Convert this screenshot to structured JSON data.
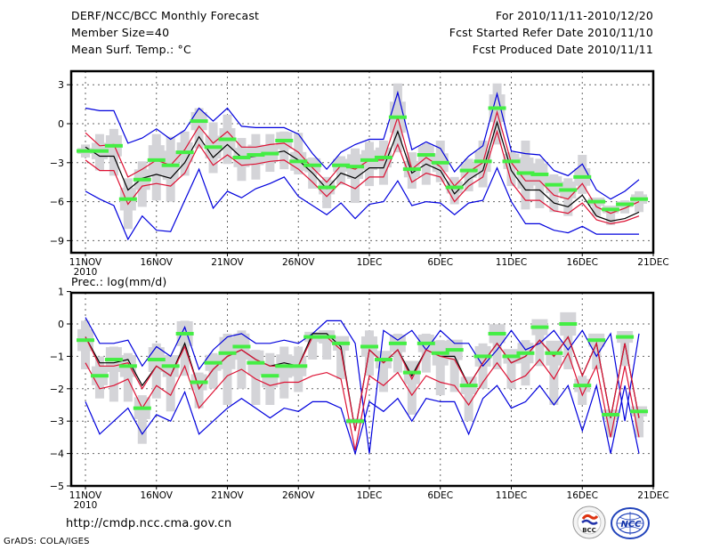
{
  "header": {
    "title": "DERF/NCC/BCC Monthly Forecast",
    "member_size": "Member Size=40",
    "variable1": "Mean Surf. Temp.: °C",
    "period": "For 2010/11/11-2010/12/20",
    "start_date": "Fcst Started Refer Date 2010/11/10",
    "produced_date": "Fcst Produced Date 2010/11/11"
  },
  "footer": {
    "url": "http://cmdp.ncc.cma.gov.cn",
    "credit": "GrADS: COLA/IGES",
    "logo_bcc": "BCC",
    "logo_ncc": "NCC"
  },
  "colors": {
    "envelope": "#0000dd",
    "spread": "#dd1133",
    "mean": "#000000",
    "members_box": "#d4d4d8",
    "median_bar": "#44ee44",
    "grid": "#666666"
  },
  "chart_data": [
    {
      "type": "line",
      "title": "Mean Surf. Temp.: °C",
      "xlabel": "",
      "ylabel": "",
      "ylim": [
        -10,
        4
      ],
      "yticks": [
        3,
        0,
        -3,
        -6,
        -9
      ],
      "xticks": [
        "11NOV",
        "16NOV",
        "21NOV",
        "26NOV",
        "1DEC",
        "6DEC",
        "11DEC",
        "16DEC",
        "21DEC"
      ],
      "xtick_year": "2010",
      "grid": true,
      "x_days": 40,
      "series": [
        {
          "name": "max",
          "color": "blue",
          "values": [
            1.2,
            1.0,
            1.0,
            -1.5,
            -1.1,
            -0.4,
            -1.2,
            -0.5,
            1.2,
            0.2,
            1.2,
            -0.2,
            -0.3,
            -0.3,
            -0.3,
            -0.8,
            -2.3,
            -3.5,
            -2.2,
            -1.6,
            -1.2,
            -1.2,
            2.4,
            -2.0,
            -1.4,
            -1.9,
            -3.7,
            -2.5,
            -1.7,
            2.3,
            -2.1,
            -2.3,
            -2.4,
            -3.6,
            -4.0,
            -3.1,
            -5.1,
            -5.8,
            -5.2,
            -4.3
          ]
        },
        {
          "name": "upper",
          "color": "red",
          "values": [
            -0.7,
            -1.7,
            -1.6,
            -4.1,
            -3.5,
            -2.8,
            -3.2,
            -2.0,
            -0.2,
            -1.5,
            -0.6,
            -1.8,
            -1.8,
            -1.6,
            -1.5,
            -2.2,
            -3.4,
            -4.5,
            -3.2,
            -3.5,
            -2.8,
            -2.8,
            0.5,
            -3.5,
            -2.6,
            -3.3,
            -4.8,
            -3.7,
            -3.0,
            0.9,
            -3.0,
            -4.4,
            -4.4,
            -5.5,
            -5.8,
            -4.6,
            -6.4,
            -6.9,
            -6.5,
            -6.0
          ]
        },
        {
          "name": "mean",
          "color": "black",
          "values": [
            -1.8,
            -2.5,
            -2.5,
            -5.1,
            -4.2,
            -3.9,
            -4.2,
            -3.0,
            -1.0,
            -2.6,
            -1.6,
            -2.6,
            -2.5,
            -2.3,
            -2.1,
            -2.8,
            -3.8,
            -5.0,
            -3.8,
            -4.2,
            -3.4,
            -3.4,
            -0.6,
            -3.8,
            -3.1,
            -3.6,
            -5.4,
            -4.3,
            -3.6,
            0.1,
            -3.6,
            -5.1,
            -5.1,
            -6.1,
            -6.4,
            -5.5,
            -7.1,
            -7.5,
            -7.3,
            -6.8
          ]
        },
        {
          "name": "lower",
          "color": "red",
          "values": [
            -2.8,
            -3.6,
            -3.6,
            -6.2,
            -4.8,
            -4.6,
            -4.8,
            -3.8,
            -1.6,
            -3.2,
            -2.4,
            -3.2,
            -3.1,
            -2.9,
            -2.8,
            -3.5,
            -4.5,
            -5.6,
            -4.5,
            -5.0,
            -4.1,
            -4.1,
            -1.6,
            -4.5,
            -3.8,
            -4.1,
            -6.0,
            -4.8,
            -4.1,
            -0.6,
            -4.5,
            -5.9,
            -5.9,
            -6.7,
            -6.9,
            -6.1,
            -7.4,
            -7.7,
            -7.5,
            -7.1
          ]
        },
        {
          "name": "min",
          "color": "blue",
          "values": [
            -5.2,
            -5.8,
            -6.3,
            -8.9,
            -7.1,
            -8.2,
            -8.3,
            -5.9,
            -3.5,
            -6.5,
            -5.2,
            -5.7,
            -5.0,
            -4.6,
            -4.1,
            -5.6,
            -6.3,
            -7.0,
            -6.1,
            -7.3,
            -6.2,
            -6.0,
            -4.4,
            -6.3,
            -6.0,
            -6.1,
            -7.0,
            -6.1,
            -5.9,
            -3.4,
            -6.0,
            -7.7,
            -7.7,
            -8.2,
            -8.4,
            -7.9,
            -8.5,
            -8.5,
            -8.5,
            -8.5
          ]
        }
      ],
      "boxes": {
        "name": "member distribution",
        "range_low": [
          -2.6,
          -3.6,
          -4.0,
          -8.1,
          -6.4,
          -5.9,
          -6.0,
          -4.0,
          -1.9,
          -3.8,
          -3.1,
          -4.4,
          -4.3,
          -3.7,
          -3.5,
          -3.9,
          -5.0,
          -6.5,
          -4.7,
          -6.1,
          -4.8,
          -4.7,
          -2.2,
          -5.0,
          -4.7,
          -4.5,
          -6.2,
          -5.2,
          -4.9,
          -1.6,
          -4.8,
          -6.6,
          -6.5,
          -6.8,
          -7.1,
          -5.4,
          -7.1,
          -7.8,
          -6.9,
          -6.8
        ],
        "range_high": [
          -1.6,
          -0.8,
          -0.4,
          -4.2,
          -2.9,
          -0.8,
          -1.0,
          -0.6,
          1.2,
          0.1,
          0.7,
          -1.1,
          -0.8,
          -0.8,
          -0.6,
          -0.7,
          -2.6,
          -4.1,
          -2.5,
          -1.9,
          -1.4,
          -1.3,
          3.1,
          -2.2,
          -1.5,
          -1.3,
          -4.1,
          -2.7,
          -1.3,
          3.1,
          -2.2,
          -1.3,
          -2.7,
          -3.9,
          -4.2,
          -2.4,
          -5.7,
          -6.5,
          -5.9,
          -5.2
        ],
        "median": [
          -2.1,
          -2.1,
          -1.7,
          -5.8,
          -4.3,
          -2.8,
          -3.2,
          -2.2,
          0.2,
          -1.8,
          -1.2,
          -2.6,
          -2.4,
          -2.3,
          -1.3,
          -2.9,
          -3.2,
          -4.9,
          -3.2,
          -3.3,
          -2.8,
          -2.6,
          0.5,
          -3.5,
          -2.4,
          -3.0,
          -4.9,
          -3.6,
          -2.9,
          1.2,
          -2.9,
          -3.8,
          -3.9,
          -4.7,
          -5.1,
          -4.1,
          -6.0,
          -6.6,
          -6.2,
          -5.8
        ]
      }
    },
    {
      "type": "line",
      "title": "Prec.: log(mm/d)",
      "xlabel": "",
      "ylabel": "",
      "ylim": [
        -5,
        1
      ],
      "yticks": [
        1,
        0,
        -1,
        -2,
        -3,
        -4,
        -5
      ],
      "xticks": [
        "11NOV",
        "16NOV",
        "21NOV",
        "26NOV",
        "1DEC",
        "6DEC",
        "11DEC",
        "16DEC",
        "21DEC"
      ],
      "xtick_year": "2010",
      "grid": true,
      "x_days": 40,
      "series": [
        {
          "name": "max",
          "color": "blue",
          "values": [
            0.2,
            -0.6,
            -0.6,
            -0.5,
            -1.3,
            -0.7,
            -1.0,
            -0.1,
            -1.4,
            -0.8,
            -0.4,
            -0.3,
            -0.6,
            -0.6,
            -0.5,
            -0.6,
            -0.3,
            0.1,
            0.1,
            -0.6,
            -4.0,
            -0.2,
            -0.5,
            -0.2,
            -0.8,
            -0.2,
            -0.6,
            -0.6,
            -1.3,
            -0.8,
            -0.2,
            -0.8,
            -0.6,
            -0.2,
            -0.8,
            -0.2,
            -1.0,
            -0.3,
            -3.0,
            -0.3
          ]
        },
        {
          "name": "mean",
          "color": "black",
          "values": [
            -0.4,
            -1.2,
            -1.2,
            -1.1,
            -1.9,
            -1.3,
            -1.6,
            -0.6,
            -2.0,
            -1.4,
            -1.0,
            -0.8,
            -1.1,
            -1.3,
            -1.2,
            -1.3,
            -0.3,
            -0.3,
            -0.7,
            -3.3,
            -0.8,
            -1.2,
            -0.8,
            -1.6,
            -0.8,
            -1.0,
            -1.0,
            -1.9,
            -1.2,
            -0.6,
            -1.2,
            -1.0,
            -0.5,
            -1.0,
            -0.4,
            -1.6,
            -0.6,
            -2.9,
            -0.6,
            -2.9
          ]
        },
        {
          "name": "upper",
          "color": "red",
          "values": [
            -0.4,
            -1.3,
            -1.3,
            -1.2,
            -2.0,
            -1.3,
            -1.6,
            -0.7,
            -2.0,
            -1.4,
            -1.0,
            -0.8,
            -1.1,
            -1.3,
            -1.3,
            -1.3,
            -0.4,
            -0.4,
            -0.8,
            -3.3,
            -0.8,
            -1.2,
            -0.8,
            -1.7,
            -0.8,
            -1.0,
            -1.1,
            -1.9,
            -1.2,
            -0.6,
            -1.2,
            -1.0,
            -0.5,
            -1.0,
            -0.4,
            -1.6,
            -0.6,
            -2.9,
            -0.6,
            -2.9
          ]
        },
        {
          "name": "lower",
          "color": "red",
          "values": [
            -1.2,
            -2.0,
            -1.9,
            -1.7,
            -2.6,
            -1.9,
            -2.2,
            -1.3,
            -2.6,
            -2.1,
            -1.6,
            -1.4,
            -1.7,
            -1.9,
            -1.8,
            -1.8,
            -1.6,
            -1.5,
            -1.7,
            -3.9,
            -1.6,
            -1.9,
            -1.5,
            -2.2,
            -1.6,
            -1.8,
            -1.9,
            -2.5,
            -1.8,
            -1.2,
            -1.8,
            -1.6,
            -1.1,
            -1.7,
            -0.9,
            -2.2,
            -1.3,
            -3.5,
            -1.3,
            -3.5
          ]
        },
        {
          "name": "min",
          "color": "blue",
          "values": [
            -2.4,
            -3.4,
            -3.0,
            -2.6,
            -3.4,
            -2.8,
            -3.0,
            -2.1,
            -3.4,
            -3.0,
            -2.6,
            -2.3,
            -2.6,
            -2.9,
            -2.6,
            -2.7,
            -2.4,
            -2.4,
            -2.6,
            -4.0,
            -2.4,
            -2.7,
            -2.3,
            -3.0,
            -2.3,
            -2.4,
            -2.4,
            -3.4,
            -2.3,
            -1.9,
            -2.6,
            -2.4,
            -1.9,
            -2.5,
            -1.9,
            -3.3,
            -1.9,
            -4.0,
            -1.9,
            -4.0
          ]
        }
      ],
      "boxes": {
        "name": "member distribution",
        "range_low": [
          -1.4,
          -2.3,
          -2.4,
          -2.4,
          -3.7,
          -2.3,
          -2.7,
          -1.6,
          -2.6,
          -2.0,
          -2.5,
          -2.0,
          -2.5,
          -2.5,
          -2.3,
          -2.1,
          -1.1,
          -1.1,
          -1.7,
          -3.6,
          -1.6,
          -2.1,
          -1.5,
          -2.8,
          -1.5,
          -2.2,
          -2.1,
          -3.0,
          -2.0,
          -1.4,
          -2.0,
          -1.9,
          -1.3,
          -2.5,
          -1.4,
          -2.5,
          -1.4,
          -3.5,
          -1.3,
          -3.5
        ],
        "range_low_inner": [],
        "range_high": [
          0.1,
          -1.0,
          -0.7,
          -0.9,
          -2.2,
          -0.6,
          -1.2,
          0.1,
          -1.5,
          -0.9,
          -0.3,
          -0.2,
          -0.8,
          -0.9,
          -0.7,
          -0.7,
          -0.4,
          -0.2,
          -0.7,
          -3.6,
          -0.2,
          -0.9,
          -0.3,
          -1.2,
          -0.3,
          -0.5,
          -0.7,
          -1.8,
          -0.6,
          -0.1,
          -1.0,
          -0.5,
          -0.2,
          -0.8,
          0.2,
          -1.6,
          -0.5,
          -2.8,
          -0.5,
          -2.8
        ],
        "median": [
          -0.5,
          -1.6,
          -1.1,
          -1.3,
          -2.6,
          -1.1,
          -1.3,
          -0.3,
          -1.8,
          -1.2,
          -0.9,
          -0.7,
          -1.2,
          -1.6,
          -1.3,
          -1.3,
          -0.4,
          -0.4,
          -0.6,
          -3.0,
          -0.7,
          -1.1,
          -0.6,
          -1.5,
          -0.6,
          -0.9,
          -0.8,
          -1.9,
          -1.0,
          -0.3,
          -1.0,
          -0.9,
          -0.1,
          -0.9,
          0.0,
          -1.9,
          -0.5,
          -2.8,
          -0.4,
          -2.7
        ]
      }
    }
  ]
}
